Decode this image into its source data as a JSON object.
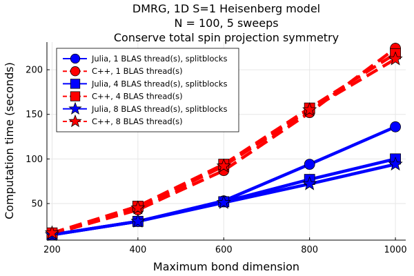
{
  "chart_data": {
    "type": "line",
    "title_lines": [
      "DMRG, 1D S=1 Heisenberg model",
      "N = 100, 5 sweeps",
      "Conserve total spin projection symmetry"
    ],
    "xlabel": "Maximum bond dimension",
    "ylabel": "Computation time (seconds)",
    "xlim": [
      188,
      1024
    ],
    "ylim": [
      9,
      231
    ],
    "xticks": [
      200,
      400,
      600,
      800,
      1000
    ],
    "yticks": [
      50,
      100,
      150,
      200
    ],
    "grid": true,
    "legend_position": "top-left",
    "x": [
      200,
      400,
      600,
      800,
      1000
    ],
    "series": [
      {
        "name": "Julia, 1 BLAS thread(s), splitblocks",
        "color": "#0000ff",
        "dash": "solid",
        "marker": "circle",
        "values": [
          15,
          30,
          53,
          94,
          136
        ]
      },
      {
        "name": "C++, 1 BLAS thread(s)",
        "color": "#ff0000",
        "dash": "dashed",
        "marker": "circle",
        "values": [
          16,
          43,
          87,
          152,
          224
        ]
      },
      {
        "name": "Julia, 4 BLAS thread(s), splitblocks",
        "color": "#0000ff",
        "dash": "solid",
        "marker": "square",
        "values": [
          15,
          30,
          52,
          77,
          100
        ]
      },
      {
        "name": "C++, 4 BLAS thread(s)",
        "color": "#ff0000",
        "dash": "dashed",
        "marker": "square",
        "values": [
          17,
          47,
          94,
          157,
          218
        ]
      },
      {
        "name": "Julia, 8 BLAS thread(s), splitblocks",
        "color": "#0000ff",
        "dash": "solid",
        "marker": "star",
        "values": [
          15,
          30,
          51,
          72,
          94
        ]
      },
      {
        "name": "C++, 8 BLAS thread(s)",
        "color": "#ff0000",
        "dash": "dashed",
        "marker": "star",
        "values": [
          17,
          45,
          92,
          155,
          212
        ]
      }
    ]
  }
}
